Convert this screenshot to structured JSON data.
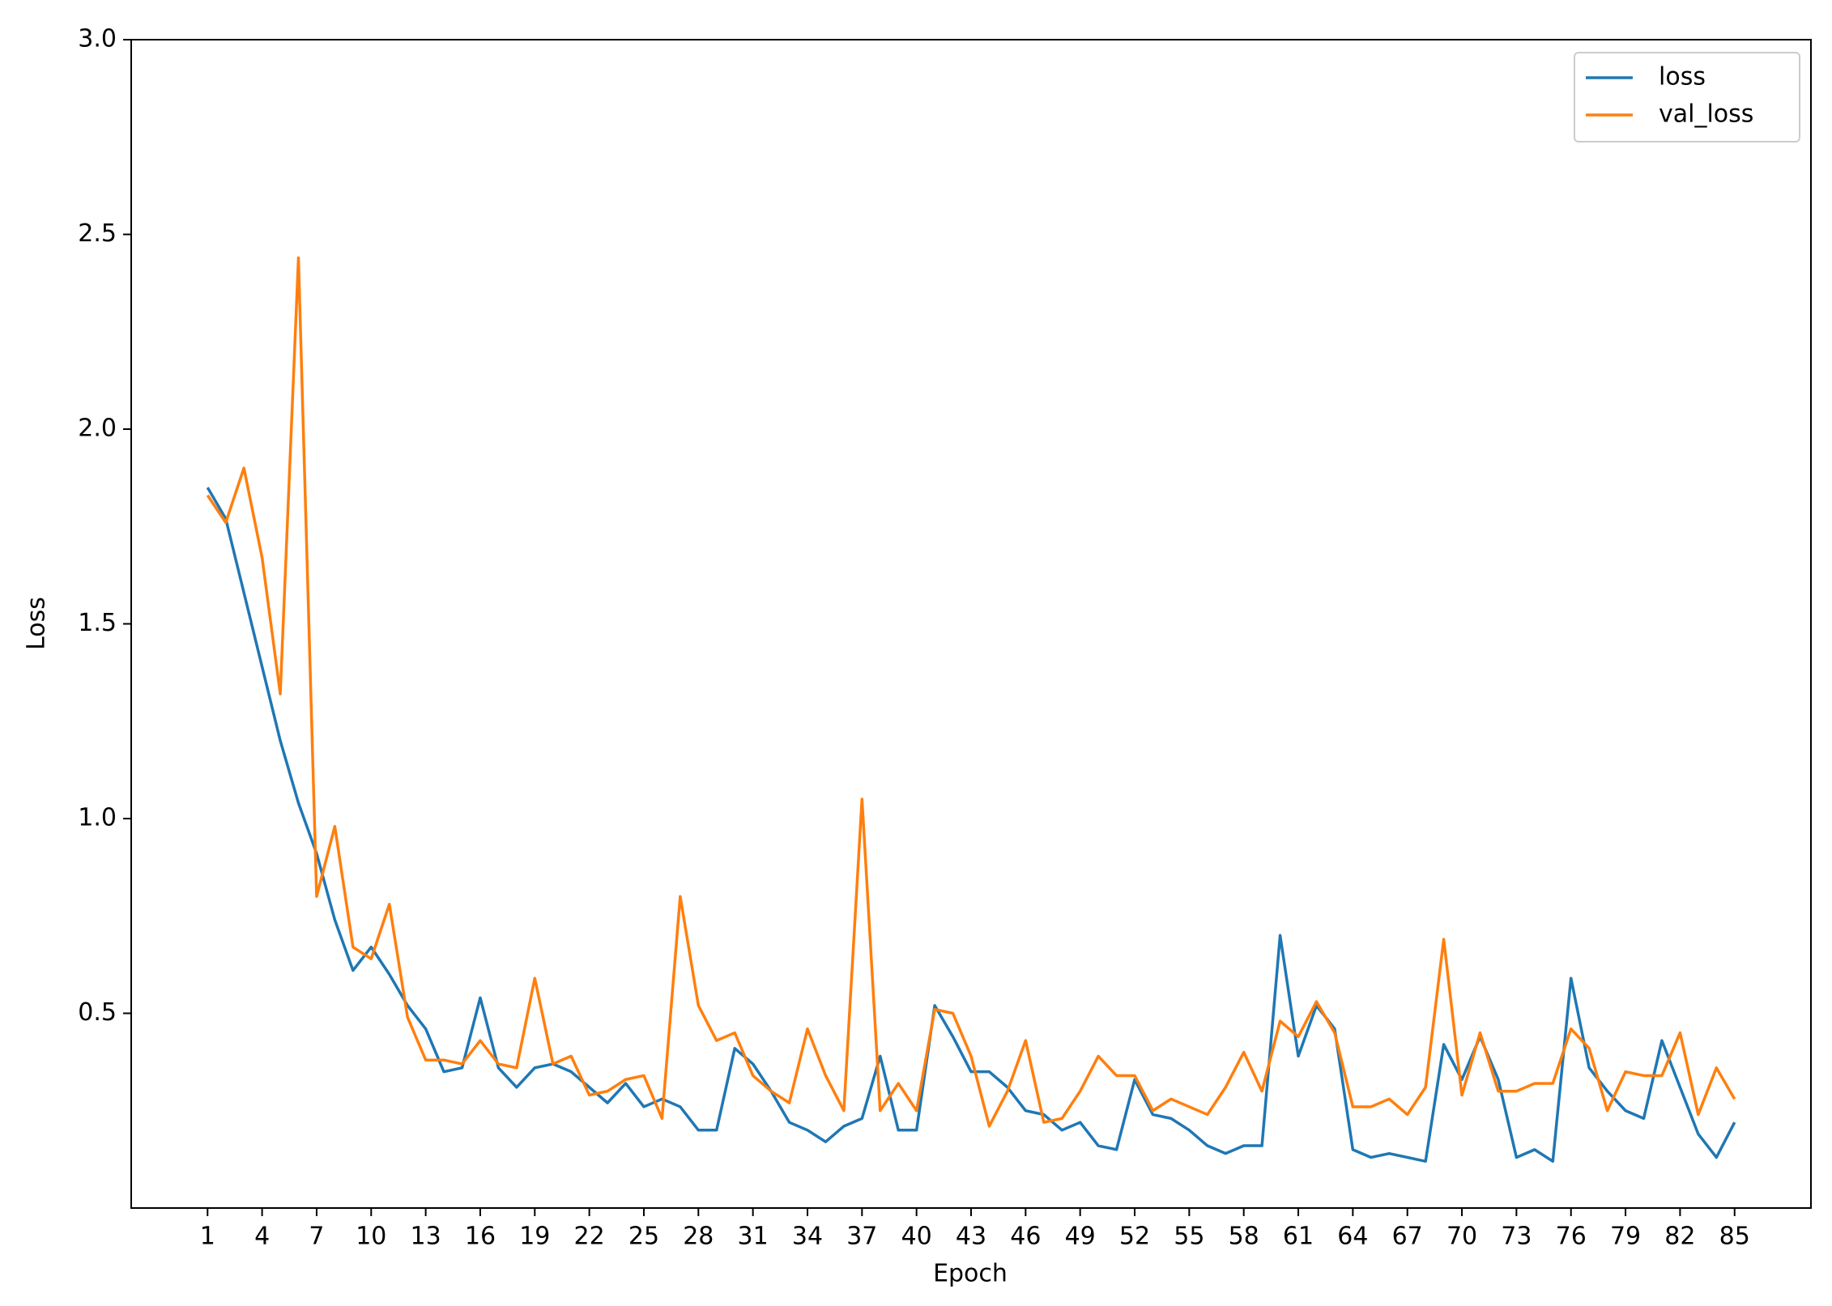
{
  "chart_data": {
    "type": "line",
    "x_label": "Epoch",
    "y_label": "Loss",
    "x": [
      1,
      2,
      3,
      4,
      5,
      6,
      7,
      8,
      9,
      10,
      11,
      12,
      13,
      14,
      15,
      16,
      17,
      18,
      19,
      20,
      21,
      22,
      23,
      24,
      25,
      26,
      27,
      28,
      29,
      30,
      31,
      32,
      33,
      34,
      35,
      36,
      37,
      38,
      39,
      40,
      41,
      42,
      43,
      44,
      45,
      46,
      47,
      48,
      49,
      50,
      51,
      52,
      53,
      54,
      55,
      56,
      57,
      58,
      59,
      60,
      61,
      62,
      63,
      64,
      65,
      66,
      67,
      68,
      69,
      70,
      71,
      72,
      73,
      74,
      75,
      76,
      77,
      78,
      79,
      80,
      81,
      82,
      83,
      84,
      85
    ],
    "series": [
      {
        "name": "loss",
        "color": "#1f77b4",
        "values": [
          1.85,
          1.77,
          1.58,
          1.39,
          1.2,
          1.04,
          0.91,
          0.74,
          0.61,
          0.67,
          0.6,
          0.52,
          0.46,
          0.35,
          0.36,
          0.54,
          0.36,
          0.31,
          0.36,
          0.37,
          0.35,
          0.31,
          0.27,
          0.32,
          0.26,
          0.28,
          0.26,
          0.2,
          0.2,
          0.41,
          0.37,
          0.3,
          0.22,
          0.2,
          0.17,
          0.21,
          0.23,
          0.39,
          0.2,
          0.2,
          0.52,
          0.44,
          0.35,
          0.35,
          0.31,
          0.25,
          0.24,
          0.2,
          0.22,
          0.16,
          0.15,
          0.33,
          0.24,
          0.23,
          0.2,
          0.16,
          0.14,
          0.16,
          0.16,
          0.7,
          0.39,
          0.52,
          0.46,
          0.15,
          0.13,
          0.14,
          0.13,
          0.12,
          0.42,
          0.33,
          0.44,
          0.33,
          0.13,
          0.15,
          0.12,
          0.59,
          0.36,
          0.3,
          0.25,
          0.23,
          0.43,
          0.31,
          0.19,
          0.13,
          0.22
        ]
      },
      {
        "name": "val_loss",
        "color": "#ff7f0e",
        "values": [
          1.83,
          1.76,
          1.9,
          1.67,
          1.32,
          2.44,
          0.8,
          0.98,
          0.67,
          0.64,
          0.78,
          0.49,
          0.38,
          0.38,
          0.37,
          0.43,
          0.37,
          0.36,
          0.59,
          0.37,
          0.39,
          0.29,
          0.3,
          0.33,
          0.34,
          0.23,
          0.8,
          0.52,
          0.43,
          0.45,
          0.34,
          0.3,
          0.27,
          0.46,
          0.34,
          0.25,
          1.05,
          0.25,
          0.32,
          0.25,
          0.51,
          0.5,
          0.39,
          0.21,
          0.3,
          0.43,
          0.22,
          0.23,
          0.3,
          0.39,
          0.34,
          0.34,
          0.25,
          0.28,
          0.26,
          0.24,
          0.31,
          0.4,
          0.3,
          0.48,
          0.44,
          0.53,
          0.45,
          0.26,
          0.26,
          0.28,
          0.24,
          0.31,
          0.69,
          0.29,
          0.45,
          0.3,
          0.3,
          0.32,
          0.32,
          0.46,
          0.41,
          0.25,
          0.35,
          0.34,
          0.34,
          0.45,
          0.24,
          0.36,
          0.28
        ]
      }
    ],
    "xlim": [
      -3.2,
      89.2
    ],
    "ylim": [
      0,
      3
    ],
    "xticks": [
      1,
      4,
      7,
      10,
      13,
      16,
      19,
      22,
      25,
      28,
      31,
      34,
      37,
      40,
      43,
      46,
      49,
      52,
      55,
      58,
      61,
      64,
      67,
      70,
      73,
      76,
      79,
      82,
      85
    ],
    "yticks": [
      0.5,
      {
        "value": 1,
        "label": "1.0"
      },
      1.5,
      {
        "value": 2,
        "label": "2.0"
      },
      2.5,
      {
        "value": 3,
        "label": "3.0"
      }
    ],
    "legend": "upper right"
  }
}
